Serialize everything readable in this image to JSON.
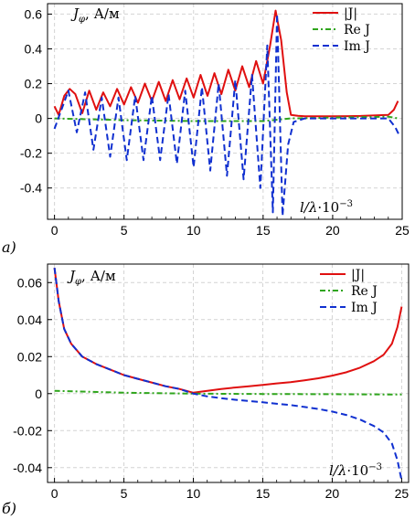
{
  "chart_data": [
    {
      "type": "line",
      "panel_label": "а)",
      "ylabel": "J_φ, А/м",
      "xlabel": "l/λ·10⁻³",
      "xlim": [
        -0.5,
        25
      ],
      "ylim": [
        -0.58,
        0.66
      ],
      "xticks": [
        0,
        5,
        10,
        15,
        20,
        25
      ],
      "yticks": [
        -0.4,
        -0.2,
        0,
        0.2,
        0.4,
        0.6
      ],
      "ytick_labels": [
        "-0.4",
        "-0.2",
        "0",
        "0.2",
        "0.4",
        "0.6"
      ],
      "grid": true,
      "legend_position": "top-right",
      "series": [
        {
          "name": "|J|",
          "color": "#e01010",
          "style": "solid",
          "x": [
            0,
            0.3,
            0.7,
            1.1,
            1.5,
            2,
            2.5,
            3,
            3.5,
            4,
            4.5,
            5,
            5.5,
            6,
            6.5,
            7,
            7.5,
            8,
            8.5,
            9,
            9.5,
            10,
            10.5,
            11,
            11.5,
            12,
            12.5,
            13,
            13.5,
            14,
            14.5,
            15,
            15.5,
            15.9,
            16.3,
            16.7,
            17,
            17.5,
            18,
            20,
            22,
            24,
            24.4,
            24.7
          ],
          "values": [
            0.07,
            0.02,
            0.13,
            0.17,
            0.14,
            0.03,
            0.16,
            0.05,
            0.15,
            0.07,
            0.17,
            0.08,
            0.18,
            0.09,
            0.2,
            0.1,
            0.21,
            0.1,
            0.22,
            0.11,
            0.23,
            0.12,
            0.25,
            0.13,
            0.26,
            0.14,
            0.28,
            0.16,
            0.3,
            0.18,
            0.33,
            0.2,
            0.42,
            0.62,
            0.45,
            0.15,
            0.02,
            0.015,
            0.012,
            0.012,
            0.014,
            0.02,
            0.05,
            0.1
          ]
        },
        {
          "name": "Re J",
          "color": "#2fa51c",
          "style": "dashdot",
          "x": [
            0,
            5,
            10,
            15,
            17,
            20,
            24,
            24.7
          ],
          "values": [
            0.0,
            -0.01,
            -0.015,
            -0.015,
            0.0,
            0.005,
            0.01,
            0.0
          ]
        },
        {
          "name": "Im J",
          "color": "#1030d0",
          "style": "dashed",
          "x": [
            0,
            0.5,
            1,
            1.6,
            2.2,
            2.8,
            3.4,
            4,
            4.6,
            5.2,
            5.8,
            6.4,
            7,
            7.6,
            8.2,
            8.8,
            9.4,
            10,
            10.6,
            11.2,
            11.8,
            12.4,
            13,
            13.6,
            14.2,
            14.8,
            15.3,
            15.7,
            16,
            16.4,
            16.8,
            17.2,
            18,
            20,
            22,
            24,
            24.5,
            24.8
          ],
          "values": [
            -0.06,
            0.05,
            0.16,
            -0.08,
            0.15,
            -0.18,
            0.12,
            -0.22,
            0.12,
            -0.24,
            0.13,
            -0.24,
            0.13,
            -0.24,
            0.14,
            -0.26,
            0.16,
            -0.28,
            0.18,
            -0.3,
            0.2,
            -0.33,
            0.22,
            -0.35,
            0.25,
            -0.4,
            0.42,
            -0.54,
            0.6,
            -0.56,
            -0.15,
            -0.02,
            0.0,
            0.0,
            0.0,
            0.0,
            -0.05,
            -0.1
          ]
        }
      ]
    },
    {
      "type": "line",
      "panel_label": "б)",
      "ylabel": "J_φ, А/м",
      "xlabel": "l/λ·10⁻³",
      "xlim": [
        -0.5,
        25.5
      ],
      "ylim": [
        -0.048,
        0.07
      ],
      "xticks": [
        0,
        5,
        10,
        15,
        20,
        25
      ],
      "yticks": [
        -0.04,
        -0.02,
        0,
        0.02,
        0.04,
        0.06
      ],
      "ytick_labels": [
        "-0.04",
        "-0.02",
        "0",
        "0.02",
        "0.04",
        "0.06"
      ],
      "grid": true,
      "legend_position": "top-right",
      "series": [
        {
          "name": "|J|",
          "color": "#e01010",
          "style": "solid",
          "x": [
            0,
            0.3,
            0.7,
            1.2,
            2,
            3,
            4,
            5,
            6,
            7,
            8,
            9,
            10,
            11,
            12,
            13,
            14,
            15,
            16,
            17,
            18,
            19,
            20,
            21,
            22,
            23,
            23.7,
            24.3,
            24.7,
            25
          ],
          "values": [
            0.068,
            0.05,
            0.035,
            0.027,
            0.02,
            0.016,
            0.013,
            0.01,
            0.008,
            0.006,
            0.004,
            0.0025,
            0.0005,
            0.0015,
            0.0025,
            0.0033,
            0.004,
            0.0047,
            0.0055,
            0.0062,
            0.0072,
            0.0083,
            0.0097,
            0.0115,
            0.014,
            0.0175,
            0.021,
            0.027,
            0.036,
            0.047
          ]
        },
        {
          "name": "Re J",
          "color": "#2fa51c",
          "style": "dashdot",
          "x": [
            0,
            5,
            10,
            15,
            20,
            25
          ],
          "values": [
            0.0015,
            0.0005,
            0.0,
            -0.0002,
            -0.0003,
            -0.0005
          ]
        },
        {
          "name": "Im J",
          "color": "#1030d0",
          "style": "dashed",
          "x": [
            0,
            0.3,
            0.7,
            1.2,
            2,
            3,
            4,
            5,
            6,
            7,
            8,
            9,
            10,
            11,
            12,
            13,
            14,
            15,
            16,
            17,
            18,
            19,
            20,
            21,
            22,
            23,
            23.7,
            24.3,
            24.7,
            25
          ],
          "values": [
            0.068,
            0.05,
            0.035,
            0.027,
            0.02,
            0.016,
            0.013,
            0.01,
            0.008,
            0.006,
            0.004,
            0.0025,
            0.0,
            -0.0015,
            -0.0025,
            -0.0033,
            -0.004,
            -0.0047,
            -0.0055,
            -0.0062,
            -0.0072,
            -0.0083,
            -0.0097,
            -0.0115,
            -0.014,
            -0.0175,
            -0.021,
            -0.027,
            -0.036,
            -0.047
          ]
        }
      ]
    }
  ]
}
